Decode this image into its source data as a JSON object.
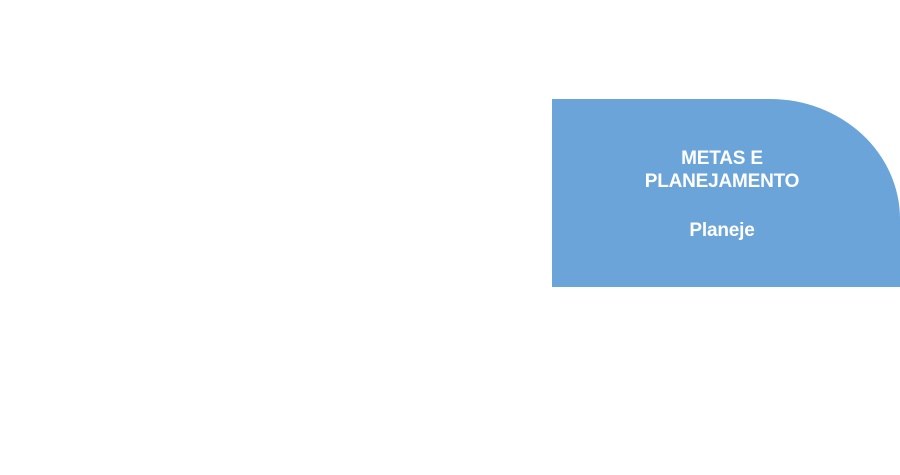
{
  "card": {
    "title_line1": "METAS E",
    "title_line2": "PLANEJAMENTO",
    "subtitle": "Planeje",
    "background_color": "#6aa4d9",
    "text_color": "#ffffff"
  }
}
